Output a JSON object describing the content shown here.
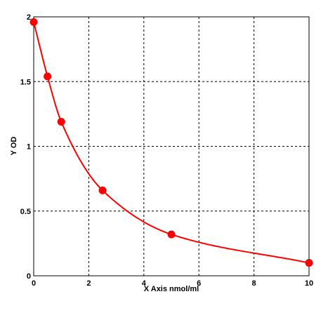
{
  "chart_data": {
    "type": "scatter",
    "xlabel": "X Axis nmol/ml",
    "ylabel": "Y OD",
    "xlim": [
      0,
      10
    ],
    "ylim": [
      0,
      2
    ],
    "x_ticks": [
      0,
      2,
      4,
      6,
      8,
      10
    ],
    "y_ticks": [
      0,
      0.5,
      1,
      1.5,
      2
    ],
    "grid": true,
    "grid_style": "dashed",
    "series": [
      {
        "x": [
          0,
          0.5,
          1,
          2.5,
          5,
          10
        ],
        "y": [
          1.96,
          1.54,
          1.19,
          0.66,
          0.32,
          0.1
        ],
        "color": "#ff0000",
        "marker": "circle",
        "fit_line": true
      }
    ]
  }
}
